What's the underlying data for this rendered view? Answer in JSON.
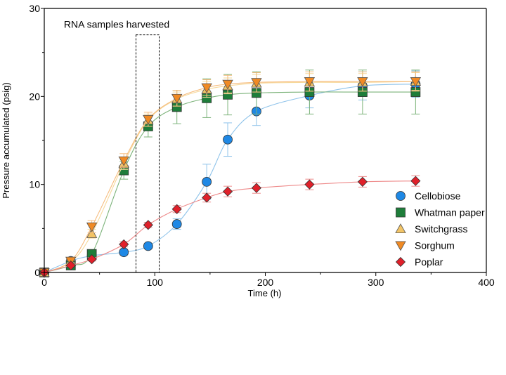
{
  "chart_data": {
    "type": "scatter",
    "title": "",
    "xlabel": "Time (h)",
    "ylabel": "Pressure accumulated (psig)",
    "xlim": [
      0,
      400
    ],
    "ylim": [
      0,
      30
    ],
    "x_ticks": [
      "0",
      "100",
      "200",
      "300",
      "400"
    ],
    "y_ticks": [
      "0",
      "10",
      "20",
      "30"
    ],
    "grid": false,
    "legend_position": "right",
    "annotation": {
      "text": "RNA samples harvested",
      "x_range": [
        83,
        104
      ],
      "y_range": [
        0,
        27
      ]
    },
    "series": [
      {
        "name": "Cellobiose",
        "marker": "circle",
        "color": "#1e88e5",
        "line_color": "#8ec3ea",
        "x": [
          0,
          24,
          43,
          72,
          94,
          120,
          147,
          166,
          192,
          240,
          288,
          336
        ],
        "y": [
          0,
          1.3,
          1.9,
          2.3,
          3.0,
          5.5,
          10.3,
          15.1,
          18.3,
          20.1,
          21.2,
          21.4
        ],
        "err": [
          0.1,
          0.2,
          0.3,
          0.3,
          0.3,
          0.6,
          2.0,
          1.9,
          1.6,
          1.4,
          1.6,
          1.5
        ]
      },
      {
        "name": "Whatman paper",
        "marker": "square",
        "color": "#1e7d3a",
        "line_color": "#7cb37a",
        "x": [
          0,
          24,
          43,
          72,
          94,
          120,
          147,
          166,
          192,
          240,
          288,
          336
        ],
        "y": [
          0,
          0.8,
          2.1,
          11.6,
          16.6,
          18.8,
          19.8,
          20.2,
          20.4,
          20.5,
          20.5,
          20.5
        ],
        "err": [
          0.1,
          0.2,
          0.4,
          1.0,
          1.2,
          1.9,
          2.2,
          2.3,
          2.4,
          2.5,
          2.5,
          2.5
        ]
      },
      {
        "name": "Switchgrass",
        "marker": "triangle-up",
        "color": "#f2c466",
        "line_color": "#f6d899",
        "x": [
          0,
          24,
          43,
          72,
          94,
          120,
          147,
          166,
          192,
          240,
          288,
          336
        ],
        "y": [
          0,
          1.2,
          4.4,
          12.4,
          17.3,
          19.7,
          20.8,
          21.2,
          21.5,
          21.6,
          21.6,
          21.7
        ],
        "err": [
          0.1,
          0.2,
          0.5,
          0.7,
          0.7,
          0.8,
          0.9,
          0.9,
          1.0,
          1.0,
          1.0,
          1.0
        ]
      },
      {
        "name": "Sorghum",
        "marker": "triangle-down",
        "color": "#f08a24",
        "line_color": "#f6bb7c",
        "x": [
          0,
          24,
          43,
          72,
          94,
          120,
          147,
          166,
          192,
          240,
          288,
          336
        ],
        "y": [
          0,
          1.3,
          5.2,
          12.7,
          17.4,
          19.8,
          21.0,
          21.4,
          21.6,
          21.7,
          21.7,
          21.7
        ],
        "err": [
          0.1,
          0.2,
          0.7,
          0.8,
          0.8,
          0.9,
          0.9,
          1.0,
          1.1,
          1.1,
          1.1,
          1.1
        ]
      },
      {
        "name": "Poplar",
        "marker": "diamond",
        "color": "#e0202a",
        "line_color": "#ee8a8a",
        "x": [
          0,
          24,
          43,
          72,
          94,
          120,
          147,
          166,
          192,
          240,
          288,
          336
        ],
        "y": [
          0,
          0.8,
          1.5,
          3.2,
          5.4,
          7.2,
          8.5,
          9.2,
          9.6,
          10.0,
          10.3,
          10.4
        ],
        "err": [
          0.1,
          0.1,
          0.2,
          0.3,
          0.3,
          0.4,
          0.5,
          0.6,
          0.6,
          0.6,
          0.6,
          0.6
        ]
      }
    ]
  }
}
